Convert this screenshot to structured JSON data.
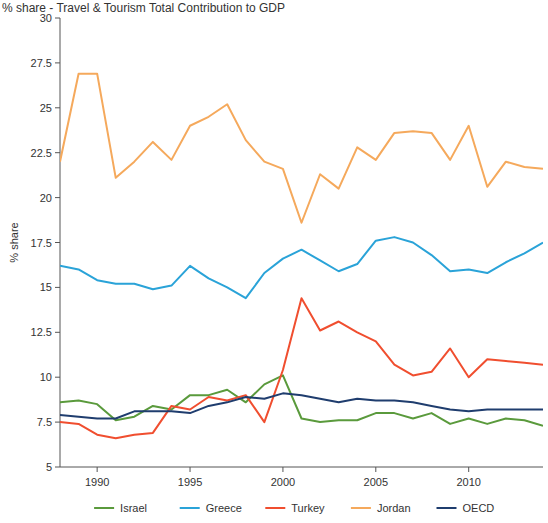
{
  "chart_data": {
    "type": "line",
    "title": "% share - Travel & Tourism Total Contribution to GDP",
    "y_label": "% share",
    "x": [
      1988,
      1989,
      1990,
      1991,
      1992,
      1993,
      1994,
      1995,
      1996,
      1997,
      1998,
      1999,
      2000,
      2001,
      2002,
      2003,
      2004,
      2005,
      2006,
      2007,
      2008,
      2009,
      2010,
      2011,
      2012,
      2013,
      2014
    ],
    "xlim": [
      1988,
      2014
    ],
    "xticks": [
      1990,
      1995,
      2000,
      2005,
      2010
    ],
    "ylim": [
      5,
      30
    ],
    "yticks": [
      5,
      7.5,
      10,
      12.5,
      15,
      17.5,
      20,
      22.5,
      25,
      27.5,
      30
    ],
    "grid": false,
    "legend": "bottom",
    "series": [
      {
        "name": "Israel",
        "color": "#5a9a3c",
        "values": [
          8.6,
          8.7,
          8.5,
          7.6,
          7.8,
          8.4,
          8.2,
          9.0,
          9.0,
          9.3,
          8.6,
          9.6,
          10.1,
          7.7,
          7.5,
          7.6,
          7.6,
          8.0,
          8.0,
          7.7,
          8.0,
          7.4,
          7.7,
          7.4,
          7.7,
          7.6,
          7.3
        ]
      },
      {
        "name": "Greece",
        "color": "#2aa3d8",
        "values": [
          16.2,
          16.0,
          15.4,
          15.2,
          15.2,
          14.9,
          15.1,
          16.2,
          15.5,
          15.0,
          14.4,
          15.8,
          16.6,
          17.1,
          16.5,
          15.9,
          16.3,
          17.6,
          17.8,
          17.5,
          16.8,
          15.9,
          16.0,
          15.8,
          16.4,
          16.9,
          17.5
        ]
      },
      {
        "name": "Turkey",
        "color": "#f04e2f",
        "values": [
          7.5,
          7.4,
          6.8,
          6.6,
          6.8,
          6.9,
          8.4,
          8.2,
          8.9,
          8.7,
          9.0,
          7.5,
          10.4,
          14.4,
          12.6,
          13.1,
          12.5,
          12.0,
          10.7,
          10.1,
          10.3,
          11.6,
          10.0,
          11.0,
          10.9,
          10.8,
          10.7
        ]
      },
      {
        "name": "Jordan",
        "color": "#f5a95c",
        "values": [
          22.0,
          26.9,
          26.9,
          21.1,
          22.0,
          23.1,
          22.1,
          24.0,
          24.5,
          25.2,
          23.2,
          22.0,
          21.6,
          18.6,
          21.3,
          20.5,
          22.8,
          22.1,
          23.6,
          23.7,
          23.6,
          22.1,
          24.0,
          20.6,
          22.0,
          21.7,
          21.6
        ]
      },
      {
        "name": "OECD",
        "color": "#1f3d6e",
        "values": [
          7.9,
          7.8,
          7.7,
          7.7,
          8.1,
          8.1,
          8.1,
          8.0,
          8.4,
          8.6,
          8.9,
          8.8,
          9.1,
          9.0,
          8.8,
          8.6,
          8.8,
          8.7,
          8.7,
          8.6,
          8.4,
          8.2,
          8.1,
          8.2,
          8.2,
          8.2,
          8.2
        ]
      }
    ]
  }
}
